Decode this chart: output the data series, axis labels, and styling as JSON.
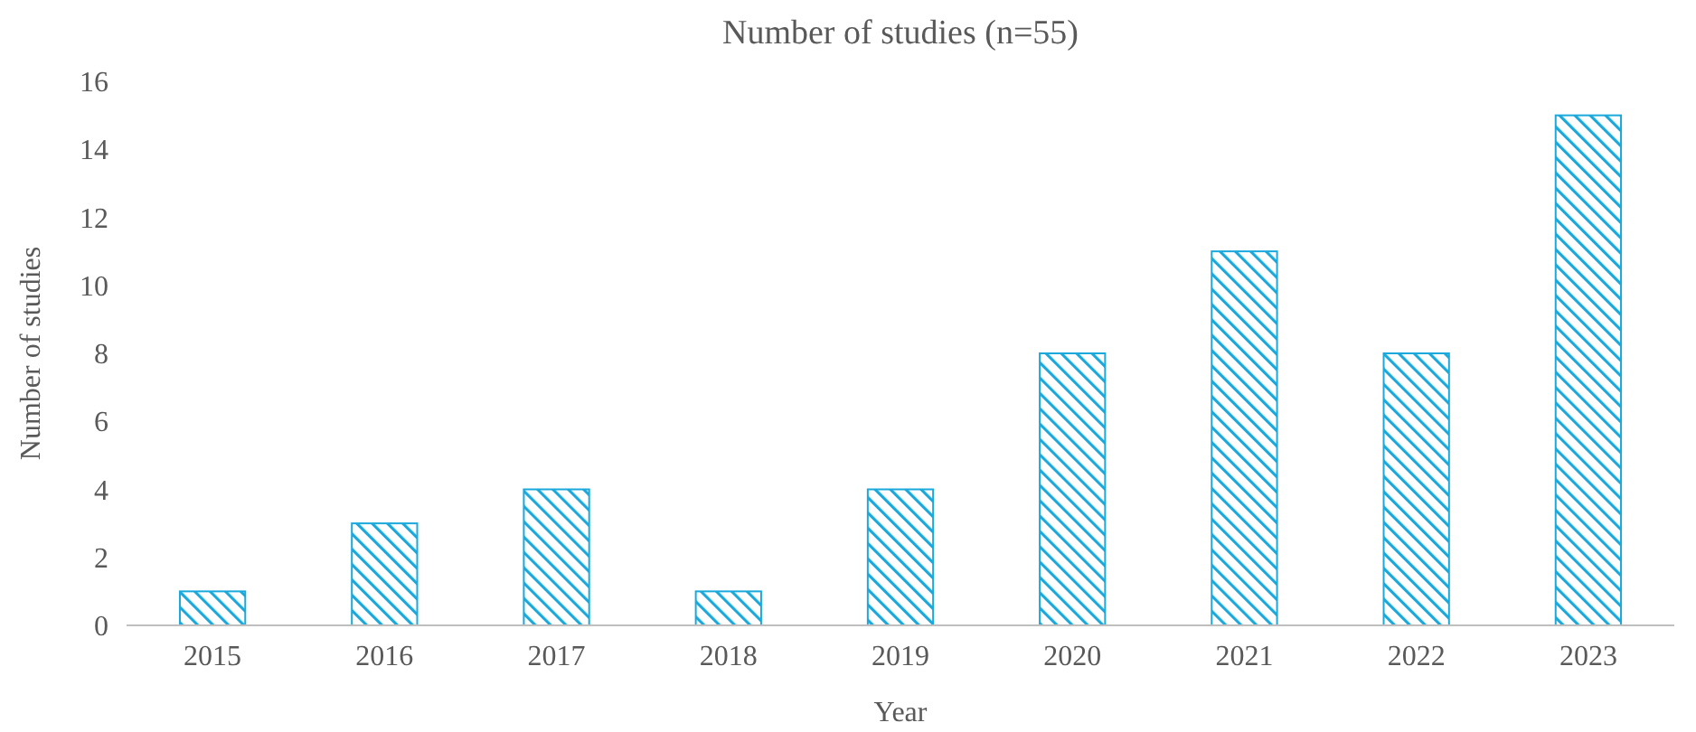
{
  "chart_data": {
    "type": "bar",
    "title": "Number of studies (n=55)",
    "xlabel": "Year",
    "ylabel": "Number of studies",
    "categories": [
      "2015",
      "2016",
      "2017",
      "2018",
      "2019",
      "2020",
      "2021",
      "2022",
      "2023"
    ],
    "values": [
      1,
      3,
      4,
      1,
      4,
      8,
      11,
      8,
      15
    ],
    "color": "#1ba9dc",
    "ylim": [
      0,
      16
    ],
    "yticks": [
      0,
      2,
      4,
      6,
      8,
      10,
      12,
      14,
      16
    ],
    "grid": false
  }
}
